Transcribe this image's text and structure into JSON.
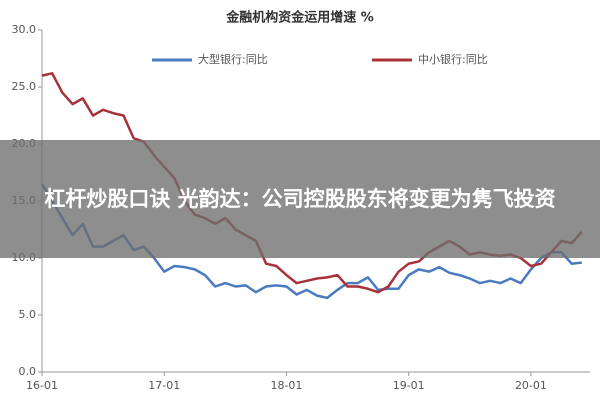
{
  "chart_data": {
    "type": "line",
    "title": "金融机构资金运用增速 %",
    "categories": [
      "16-01",
      null,
      null,
      null,
      null,
      null,
      null,
      null,
      null,
      null,
      null,
      null,
      "17-01",
      null,
      null,
      null,
      null,
      null,
      null,
      null,
      null,
      null,
      null,
      null,
      "18-01",
      null,
      null,
      null,
      null,
      null,
      null,
      null,
      null,
      null,
      null,
      null,
      "19-01",
      null,
      null,
      null,
      null,
      null,
      null,
      null,
      null,
      null,
      null,
      null,
      "20-01",
      null,
      null,
      null,
      null,
      null
    ],
    "series": [
      {
        "name": "大型银行:同比",
        "color": "#4a7bc0",
        "values": [
          16.5,
          15,
          13.5,
          12,
          13,
          11,
          11,
          11.5,
          12,
          10.7,
          11,
          10,
          8.8,
          9.3,
          9.2,
          9,
          8.5,
          7.5,
          7.8,
          7.5,
          7.6,
          7,
          7.5,
          7.6,
          7.5,
          6.8,
          7.2,
          6.7,
          6.5,
          7.2,
          7.8,
          7.8,
          8.3,
          7.2,
          7.3,
          7.3,
          8.5,
          9,
          8.8,
          9.2,
          8.7,
          8.5,
          8.2,
          7.8,
          8,
          7.8,
          8.2,
          7.8,
          9,
          10,
          10.5,
          10.5,
          9.5,
          9.6
        ]
      },
      {
        "name": "中小银行:同比",
        "color": "#a8323a",
        "values": [
          26,
          26.2,
          24.5,
          23.5,
          24,
          22.5,
          23,
          22.7,
          22.5,
          20.5,
          20.2,
          19,
          18,
          17,
          15,
          13.8,
          13.5,
          13,
          13.5,
          12.5,
          12,
          11.5,
          9.5,
          9.3,
          8.5,
          7.8,
          8,
          8.2,
          8.3,
          8.5,
          7.5,
          7.5,
          7.3,
          7,
          7.5,
          8.8,
          9.5,
          9.7,
          10.5,
          11,
          11.5,
          11,
          10.3,
          10.5,
          10.3,
          10.2,
          10.3,
          10,
          9.3,
          9.5,
          10.5,
          11.5,
          11.3,
          12.3
        ]
      }
    ],
    "ylim": [
      0,
      30
    ],
    "yticks": [
      {
        "value": 0,
        "label": "0.0"
      },
      {
        "value": 5,
        "label": "5.0"
      },
      {
        "value": 10,
        "label": "10.0"
      },
      {
        "value": 15,
        "label": "15.0"
      },
      {
        "value": 20,
        "label": "20.0"
      },
      {
        "value": 25,
        "label": "25.0"
      },
      {
        "value": 30,
        "label": "30.0"
      }
    ]
  },
  "overlay_text": "杠杆炒股口诀 光韵达：公司控股股东将变更为隽飞投资"
}
